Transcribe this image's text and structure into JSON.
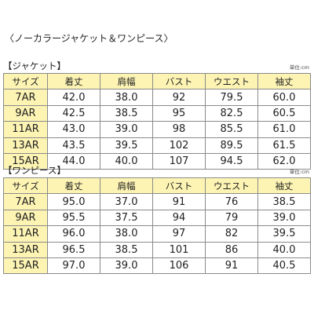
{
  "page_title": "〈ノーカラージャケット＆ワンピース〉",
  "colors": {
    "header_bg": "#fdf4b4",
    "border": "#8a8a8a"
  },
  "tables": [
    {
      "title": "【ジャケット】",
      "unit": "単位:cm",
      "headers": [
        "サイズ",
        "着丈",
        "肩幅",
        "バスト",
        "ウエスト",
        "袖丈"
      ],
      "rows": [
        [
          "7AR",
          "42.0",
          "38.0",
          "92",
          "79.5",
          "60.0"
        ],
        [
          "9AR",
          "42.5",
          "38.5",
          "95",
          "82.5",
          "60.5"
        ],
        [
          "11AR",
          "43.0",
          "39.0",
          "98",
          "85.5",
          "61.0"
        ],
        [
          "13AR",
          "43.5",
          "39.5",
          "102",
          "89.5",
          "61.5"
        ],
        [
          "15AR",
          "44.0",
          "40.0",
          "107",
          "94.5",
          "62.0"
        ]
      ]
    },
    {
      "title": "【ワンピース】",
      "unit": "単位:cm",
      "headers": [
        "サイズ",
        "着丈",
        "肩幅",
        "バスト",
        "ウエスト",
        "袖丈"
      ],
      "rows": [
        [
          "7AR",
          "95.0",
          "37.0",
          "91",
          "76",
          "38.5"
        ],
        [
          "9AR",
          "95.5",
          "37.5",
          "94",
          "79",
          "39.0"
        ],
        [
          "11AR",
          "96.0",
          "38.0",
          "97",
          "82",
          "39.5"
        ],
        [
          "13AR",
          "96.5",
          "38.5",
          "101",
          "86",
          "40.0"
        ],
        [
          "15AR",
          "97.0",
          "39.0",
          "106",
          "91",
          "40.5"
        ]
      ]
    }
  ]
}
